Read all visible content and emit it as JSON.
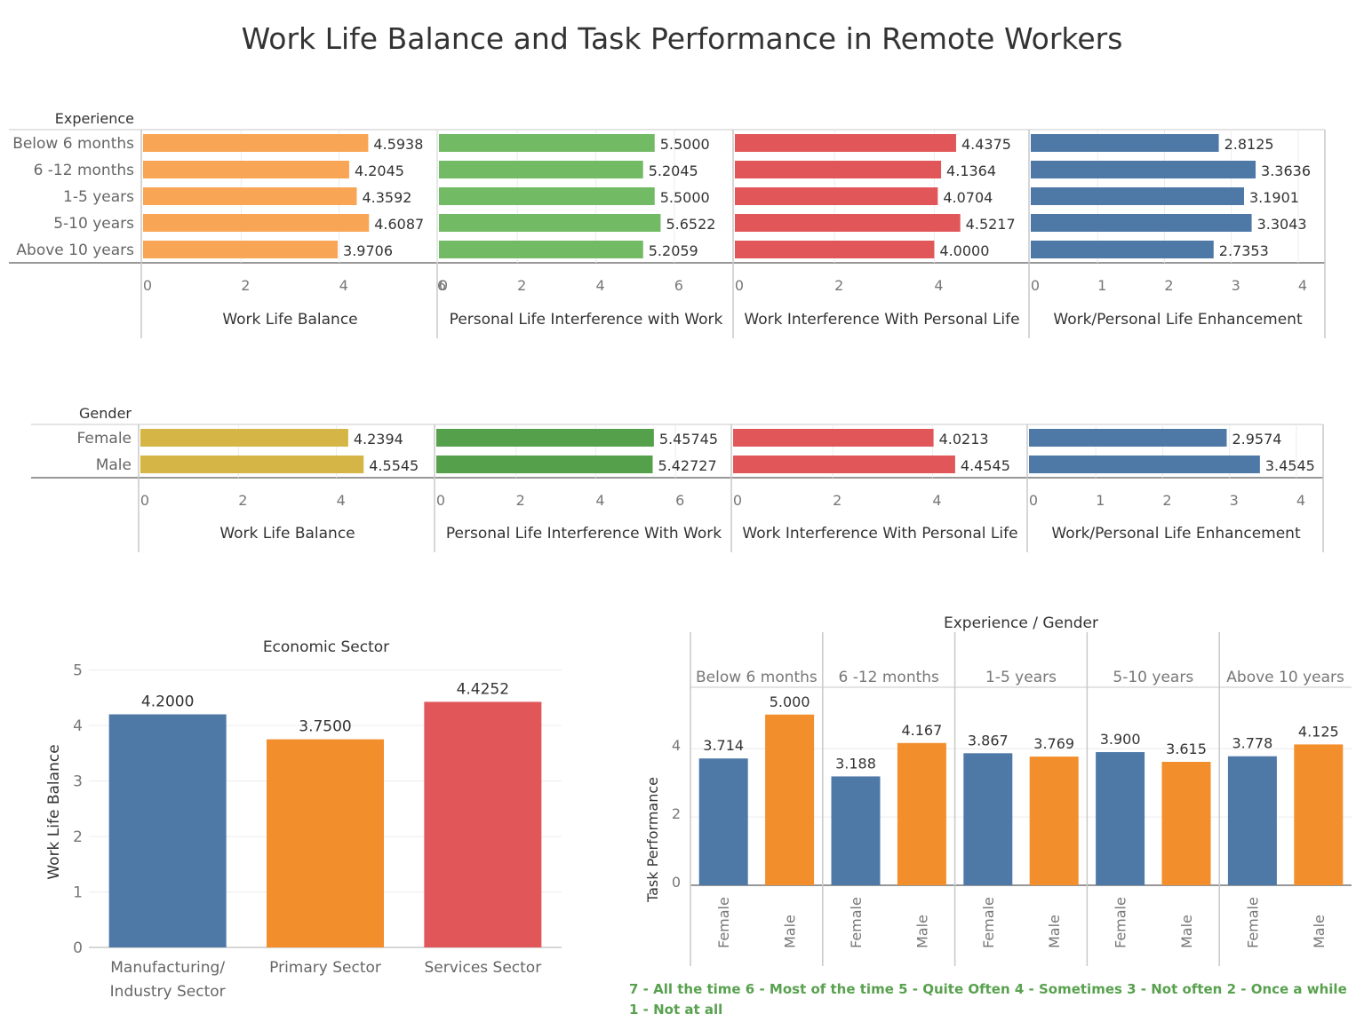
{
  "page_title": "Work Life Balance and Task Performance in Remote Workers",
  "colors": {
    "orange_light": "#f8a655",
    "green_light": "#73ba64",
    "red": "#e15759",
    "blue": "#4e79a7",
    "gold": "#d4b545",
    "green_dark": "#55a04a",
    "orange": "#f28e2b",
    "note_green": "#59a14f"
  },
  "chart_data": [
    {
      "type": "bar",
      "orientation": "horizontal",
      "row_header": "Experience",
      "categories": [
        "Below 6 months",
        "6 -12 months",
        "1-5 years",
        "5-10 years",
        "Above 10 years"
      ],
      "panels": [
        {
          "name": "Work Life Balance",
          "values": [
            4.5938,
            4.2045,
            4.3592,
            4.6087,
            3.9706
          ],
          "labels": [
            "4.5938",
            "4.2045",
            "4.3592",
            "4.6087",
            "3.9706"
          ],
          "xlim": [
            0,
            6
          ],
          "ticks": [
            0,
            2,
            4,
            6
          ],
          "color": "#f8a655"
        },
        {
          "name": "Personal Life Interference with Work",
          "values": [
            5.5,
            5.2045,
            5.5,
            5.6522,
            5.2059
          ],
          "labels": [
            "5.5000",
            "5.2045",
            "5.5000",
            "5.6522",
            "5.2059"
          ],
          "xlim": [
            0,
            7.5
          ],
          "ticks": [
            0,
            2,
            4,
            6
          ],
          "color": "#73ba64"
        },
        {
          "name": "Work Interference With Personal Life",
          "values": [
            4.4375,
            4.1364,
            4.0704,
            4.5217,
            4.0
          ],
          "labels": [
            "4.4375",
            "4.1364",
            "4.0704",
            "4.5217",
            "4.0000"
          ],
          "xlim": [
            0,
            5.9
          ],
          "ticks": [
            0,
            2,
            4
          ],
          "color": "#e15759"
        },
        {
          "name": "Work/Personal Life Enhancement",
          "values": [
            2.8125,
            3.3636,
            3.1901,
            3.3043,
            2.7353
          ],
          "labels": [
            "2.8125",
            "3.3636",
            "3.1901",
            "3.3043",
            "2.7353"
          ],
          "xlim": [
            0,
            4.4
          ],
          "ticks": [
            0,
            1,
            2,
            3,
            4
          ],
          "color": "#4e79a7"
        }
      ]
    },
    {
      "type": "bar",
      "orientation": "horizontal",
      "row_header": "Gender",
      "categories": [
        "Female",
        "Male"
      ],
      "panels": [
        {
          "name": "Work Life Balance",
          "values": [
            4.2394,
            4.5545
          ],
          "labels": [
            "4.2394",
            "4.5545"
          ],
          "xlim": [
            0,
            6
          ],
          "ticks": [
            0,
            2,
            4
          ],
          "color": "#d4b545"
        },
        {
          "name": "Personal Life Interference With Work",
          "values": [
            5.45745,
            5.42727
          ],
          "labels": [
            "5.45745",
            "5.42727"
          ],
          "xlim": [
            0,
            7.4
          ],
          "ticks": [
            0,
            2,
            4,
            6
          ],
          "color": "#55a04a"
        },
        {
          "name": "Work Interference With Personal Life",
          "values": [
            4.0213,
            4.4545
          ],
          "labels": [
            "4.0213",
            "4.4545"
          ],
          "xlim": [
            0,
            5.9
          ],
          "ticks": [
            0,
            2,
            4
          ],
          "color": "#e15759"
        },
        {
          "name": "Work/Personal Life Enhancement",
          "values": [
            2.9574,
            3.4545
          ],
          "labels": [
            "2.9574",
            "3.4545"
          ],
          "xlim": [
            0,
            4.4
          ],
          "ticks": [
            0,
            1,
            2,
            3,
            4
          ],
          "color": "#4e79a7"
        }
      ]
    },
    {
      "type": "bar",
      "title": "Economic Sector",
      "ylabel": "Work Life Balance",
      "categories": [
        "Manufacturing/\nIndustry Sector",
        "Primary Sector",
        "Services Sector"
      ],
      "values": [
        4.2,
        3.75,
        4.4252
      ],
      "labels": [
        "4.2000",
        "3.7500",
        "4.4252"
      ],
      "colors": [
        "#4e79a7",
        "#f28e2b",
        "#e15759"
      ],
      "ylim": [
        0,
        5.2
      ],
      "yticks": [
        0,
        1,
        2,
        3,
        4,
        5
      ]
    },
    {
      "type": "bar",
      "title": "Experience  /  Gender",
      "ylabel": "Task Performance",
      "groups": [
        "Below 6 months",
        "6 -12 months",
        "1-5 years",
        "5-10 years",
        "Above 10 years"
      ],
      "subcategories": [
        "Female",
        "Male"
      ],
      "series": [
        {
          "name": "Female",
          "values": [
            3.714,
            3.188,
            3.867,
            3.9,
            3.778
          ],
          "labels": [
            "3.714",
            "3.188",
            "3.867",
            "3.900",
            "3.778"
          ],
          "color": "#4e79a7"
        },
        {
          "name": "Male",
          "values": [
            5.0,
            4.167,
            3.769,
            3.615,
            4.125
          ],
          "labels": [
            "5.000",
            "4.167",
            "3.769",
            "3.615",
            "4.125"
          ],
          "color": "#f28e2b"
        }
      ],
      "ylim": [
        0,
        5.8
      ],
      "yticks": [
        0,
        2,
        4
      ]
    }
  ],
  "scale_note": "7 - All the time  6 - Most of the time  5 - Quite Often  4 - Sometimes  3 - Not often  2 - Once a while  1 - Not at all"
}
